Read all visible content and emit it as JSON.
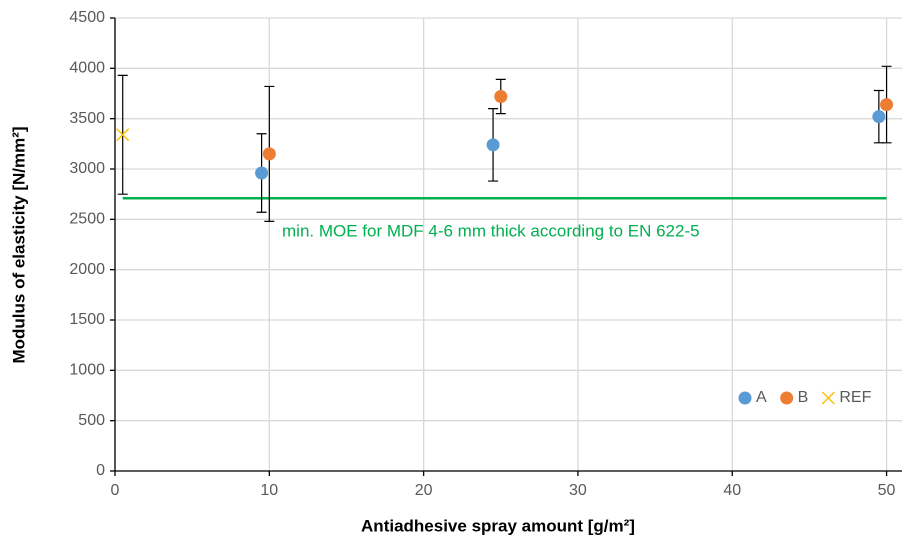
{
  "chart_data": {
    "type": "scatter",
    "x_label": "Antiadhesive spray amount [g/m²]",
    "y_label": "Modulus of elasticity [N/mm²]",
    "xlim": [
      0,
      51
    ],
    "xticks": [
      0,
      10,
      20,
      30,
      40,
      50
    ],
    "ylim": [
      0,
      4500
    ],
    "yticks": [
      0,
      500,
      1000,
      1500,
      2000,
      2500,
      3000,
      3500,
      4000,
      4500
    ],
    "grid": true,
    "legend": "lower right",
    "series": [
      {
        "name": "A",
        "color": "#5b9bd5",
        "marker": "circle",
        "x": [
          9.5,
          24.5,
          49.5
        ],
        "values": [
          2960,
          3240,
          3520
        ],
        "errors": [
          390,
          360,
          260
        ]
      },
      {
        "name": "B",
        "color": "#ed7d31",
        "marker": "circle",
        "x": [
          10,
          25,
          50
        ],
        "values": [
          3150,
          3720,
          3640
        ],
        "errors": [
          670,
          170,
          380
        ]
      },
      {
        "name": "REF",
        "color": "#ffc000",
        "marker": "x",
        "x": [
          0.5
        ],
        "values": [
          3340
        ],
        "errors": [
          590
        ]
      }
    ],
    "reference_line": {
      "value": 2710,
      "x": [
        0.5,
        50
      ],
      "color": "#00b050",
      "label": "min. MOE for MDF 4-6 mm thick according to EN 622-5"
    }
  }
}
